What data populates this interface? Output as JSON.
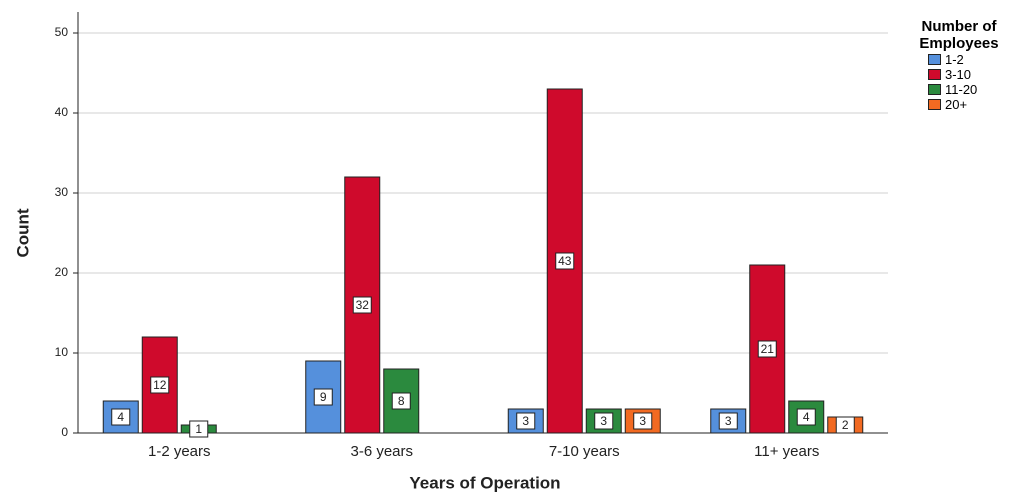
{
  "chart_data": {
    "type": "bar",
    "x_label": "Years of Operation",
    "y_label": "Count",
    "categories": [
      "1-2 years",
      "3-6 years",
      "7-10 years",
      "11+ years"
    ],
    "legend_title": "Number of Employees",
    "series": [
      {
        "name": "1-2",
        "color": "#5590dc",
        "values": [
          4,
          9,
          3,
          3
        ]
      },
      {
        "name": "3-10",
        "color": "#cf0a2c",
        "values": [
          12,
          32,
          43,
          21
        ]
      },
      {
        "name": "11-20",
        "color": "#2b8a3e",
        "values": [
          1,
          8,
          3,
          4
        ]
      },
      {
        "name": "20+",
        "color": "#f26a22",
        "values": [
          null,
          null,
          3,
          2
        ]
      }
    ],
    "ylim": [
      0,
      50
    ],
    "yticks": [
      0,
      10,
      20,
      30,
      40,
      50
    ],
    "grid": true,
    "legend": "right"
  }
}
